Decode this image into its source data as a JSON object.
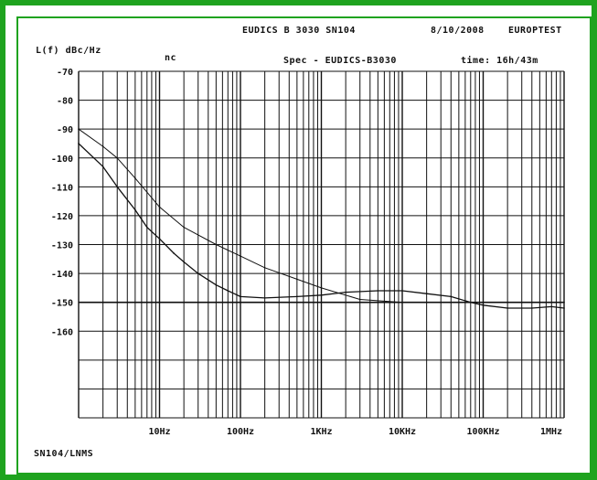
{
  "header": {
    "instrument": "EUDICS B 3030 SN104",
    "date": "8/10/2008",
    "lab": "EUROPTEST",
    "ylabel": "L(f) dBc/Hz",
    "mode": "nc",
    "spec": "Spec - EUDICS-B3030",
    "time": "time: 16h/43m"
  },
  "footer": {
    "label": "SN104/LNMS"
  },
  "colors": {
    "frame": "#1fa31f",
    "ink": "#111111"
  },
  "chart_data": {
    "type": "line",
    "title": "EUDICS B 3030 SN104",
    "ylabel": "L(f) dBc/Hz",
    "xlabel": "",
    "x_scale": "log",
    "xlim": [
      1,
      1000000
    ],
    "ylim": [
      -190,
      -70
    ],
    "grid": true,
    "x_tick_labels": [
      "10Hz",
      "100Hz",
      "1KHz",
      "10KHz",
      "100KHz",
      "1MHz"
    ],
    "x_tick_values": [
      10,
      100,
      1000,
      10000,
      100000,
      1000000
    ],
    "y_tick_labels": [
      "-70",
      "-80",
      "-90",
      "-100",
      "-110",
      "-120",
      "-130",
      "-140",
      "-150",
      "-160"
    ],
    "y_tick_values": [
      -70,
      -80,
      -90,
      -100,
      -110,
      -120,
      -130,
      -140,
      -150,
      -160
    ],
    "series": [
      {
        "role": "specification limit",
        "x": [
          1,
          2,
          3,
          5,
          10,
          20,
          50,
          100,
          200,
          500,
          1000,
          3000,
          10000,
          1000000
        ],
        "y": [
          -90,
          -96,
          -100,
          -107,
          -117,
          -124,
          -130,
          -134,
          -138,
          -142,
          -145,
          -149,
          -150,
          -150
        ]
      },
      {
        "role": "measured phase noise",
        "x": [
          1,
          2,
          3,
          5,
          7,
          10,
          15,
          20,
          30,
          50,
          70,
          100,
          200,
          500,
          1000,
          2000,
          5000,
          10000,
          20000,
          40000,
          70000,
          100000,
          200000,
          400000,
          700000,
          1000000
        ],
        "y": [
          -95,
          -103,
          -110,
          -118,
          -124,
          -128,
          -133,
          -136,
          -140,
          -144,
          -146,
          -148,
          -148.5,
          -148,
          -147.5,
          -146.5,
          -146,
          -146,
          -147,
          -148,
          -150,
          -151,
          -152,
          -152,
          -151.5,
          -152
        ]
      }
    ]
  }
}
